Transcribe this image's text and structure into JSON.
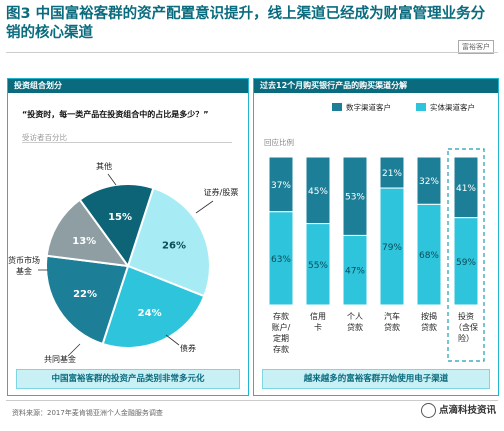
{
  "header": {
    "title_prefix": "图3",
    "title_text": "中国富裕客群的资产配置意识提升，线上渠道已经成为财富管理业务分销的核心渠道",
    "brand": "富裕客户"
  },
  "left_panel": {
    "heading": "投资组合划分",
    "question": "“投资时，每一类产品在投资组合中的占比是多少？”",
    "note": "受访者百分比",
    "footer": "中国富裕客群的投资产品类别非常多元化"
  },
  "right_panel": {
    "heading": "过去12个月购买银行产品的购买渠道分解",
    "legend_digital": "数字渠道客户",
    "legend_physical": "实体渠道客户",
    "note": "回应比例",
    "footer": "越来越多的富裕客群开始使用电子渠道"
  },
  "source": "资料来源：2017年麦肯锡亚洲个人金融服务调查",
  "watermark": "点滴科技资讯",
  "colors": {
    "dark_teal": "#0a6b7e",
    "teal": "#1c7f97",
    "light_cyan": "#a7ecf5",
    "cyan": "#2ec4dc",
    "gray": "#8e9ea3",
    "border": "#22b5cf"
  },
  "chart_data": [
    {
      "type": "pie",
      "labels": [
        "证券/股票",
        "债券",
        "共同基金",
        "货币市场基金",
        "其他"
      ],
      "values": [
        26,
        24,
        22,
        13,
        15
      ],
      "value_labels": [
        "26%",
        "24%",
        "22%",
        "13%",
        "15%"
      ],
      "colors": [
        "#a7ecf5",
        "#2ec4dc",
        "#1c7f97",
        "#8e9ea3",
        "#0d6476"
      ]
    },
    {
      "type": "bar",
      "stacked": true,
      "categories": [
        "存款账户/定期存款",
        "信用卡",
        "个人贷款",
        "汽车贷款",
        "按揭贷款",
        "投资（含保险）"
      ],
      "series": [
        {
          "name": "数字渠道客户",
          "values": [
            37,
            45,
            53,
            21,
            32,
            41
          ],
          "color": "#1c7f97"
        },
        {
          "name": "实体渠道客户",
          "values": [
            63,
            55,
            47,
            79,
            68,
            59
          ],
          "color": "#2ec4dc"
        }
      ],
      "ylim": [
        0,
        100
      ],
      "highlighted_category": "投资（含保险）"
    }
  ]
}
